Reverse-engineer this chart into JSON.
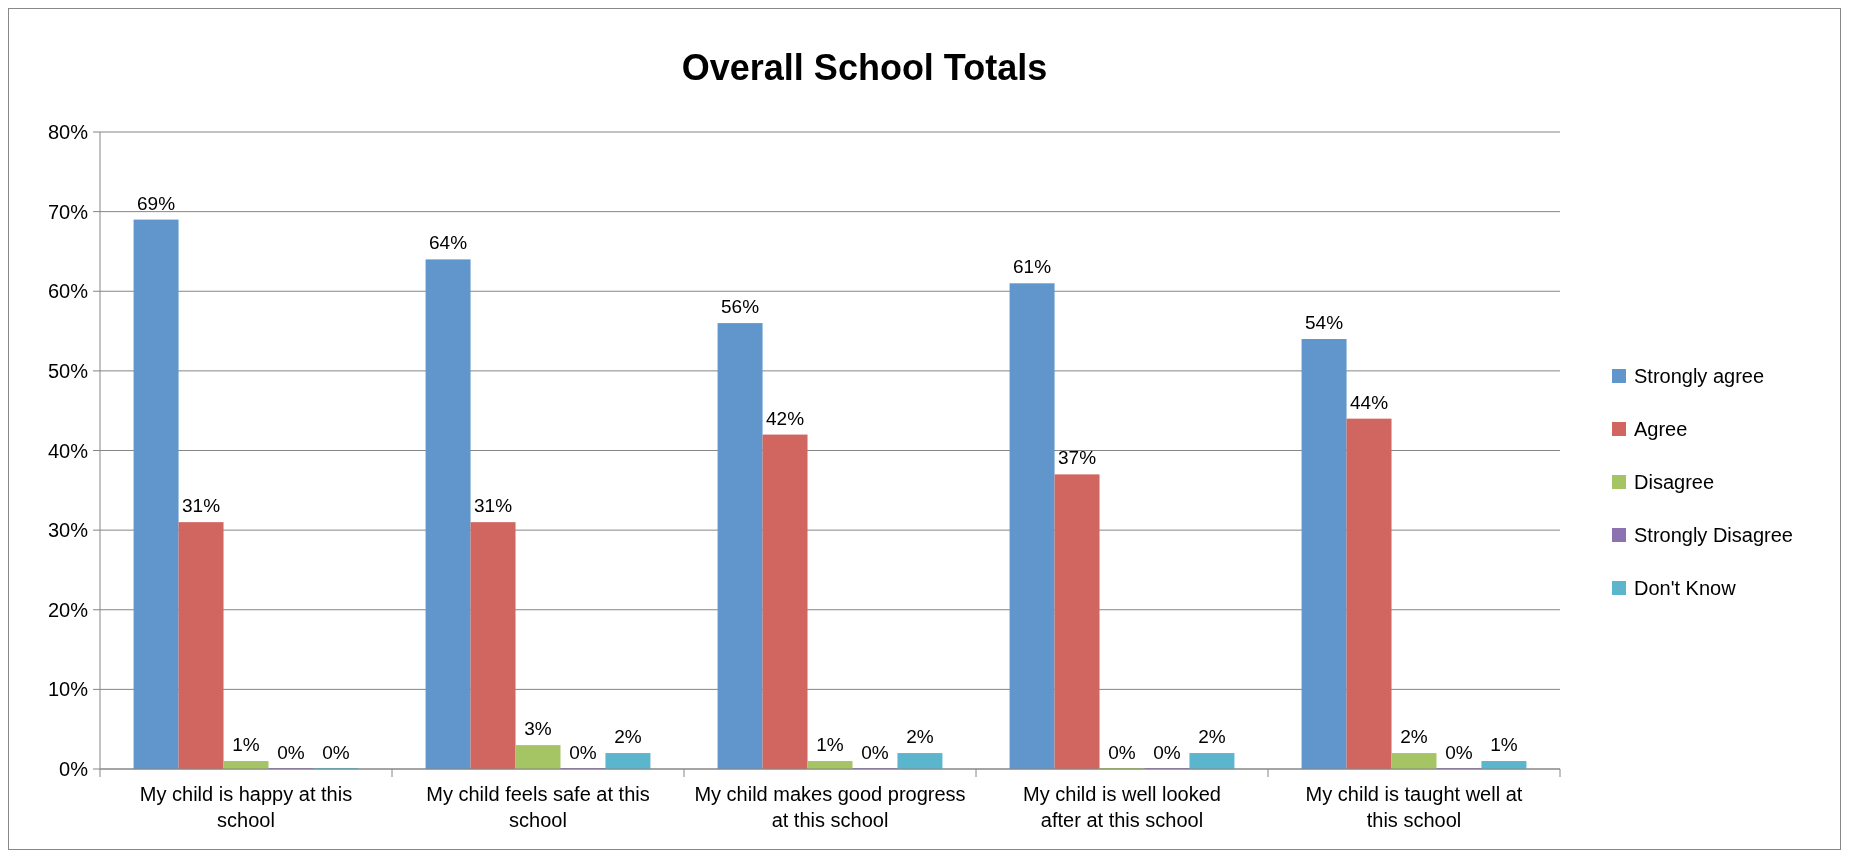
{
  "chart_data": {
    "type": "bar",
    "title": "Overall School Totals",
    "categories": [
      "My child is happy at this school",
      "My child feels safe at this school",
      "My child makes good progress at this school",
      "My child is well looked after at this school",
      "My child is taught well at this school"
    ],
    "series": [
      {
        "name": "Strongly agree",
        "color": "#6096cb",
        "values": [
          69,
          64,
          56,
          61,
          54
        ],
        "value_labels": [
          "69%",
          "64%",
          "56%",
          "61%",
          "54%"
        ]
      },
      {
        "name": "Agree",
        "color": "#d0665f",
        "values": [
          31,
          31,
          42,
          37,
          44
        ],
        "value_labels": [
          "31%",
          "31%",
          "42%",
          "37%",
          "44%"
        ]
      },
      {
        "name": "Disagree",
        "color": "#a5c463",
        "values": [
          1,
          3,
          1,
          0,
          2
        ],
        "value_labels": [
          "1%",
          "3%",
          "1%",
          "0%",
          "2%"
        ]
      },
      {
        "name": "Strongly Disagree",
        "color": "#8d72b2",
        "values": [
          0,
          0,
          0,
          0,
          0
        ],
        "value_labels": [
          "0%",
          "0%",
          "0%",
          "0%",
          "0%"
        ]
      },
      {
        "name": "Don't Know",
        "color": "#5ab5cd",
        "values": [
          0,
          2,
          2,
          2,
          1
        ],
        "value_labels": [
          "0%",
          "2%",
          "2%",
          "2%",
          "1%"
        ]
      }
    ],
    "ylim": [
      0,
      80
    ],
    "yticks": [
      {
        "value": 0,
        "label": "0%"
      },
      {
        "value": 10,
        "label": "10%"
      },
      {
        "value": 20,
        "label": "20%"
      },
      {
        "value": 30,
        "label": "30%"
      },
      {
        "value": 40,
        "label": "40%"
      },
      {
        "value": 50,
        "label": "50%"
      },
      {
        "value": 60,
        "label": "60%"
      },
      {
        "value": 70,
        "label": "70%"
      },
      {
        "value": 80,
        "label": "80%"
      }
    ],
    "grid": "y",
    "legend": "right"
  }
}
